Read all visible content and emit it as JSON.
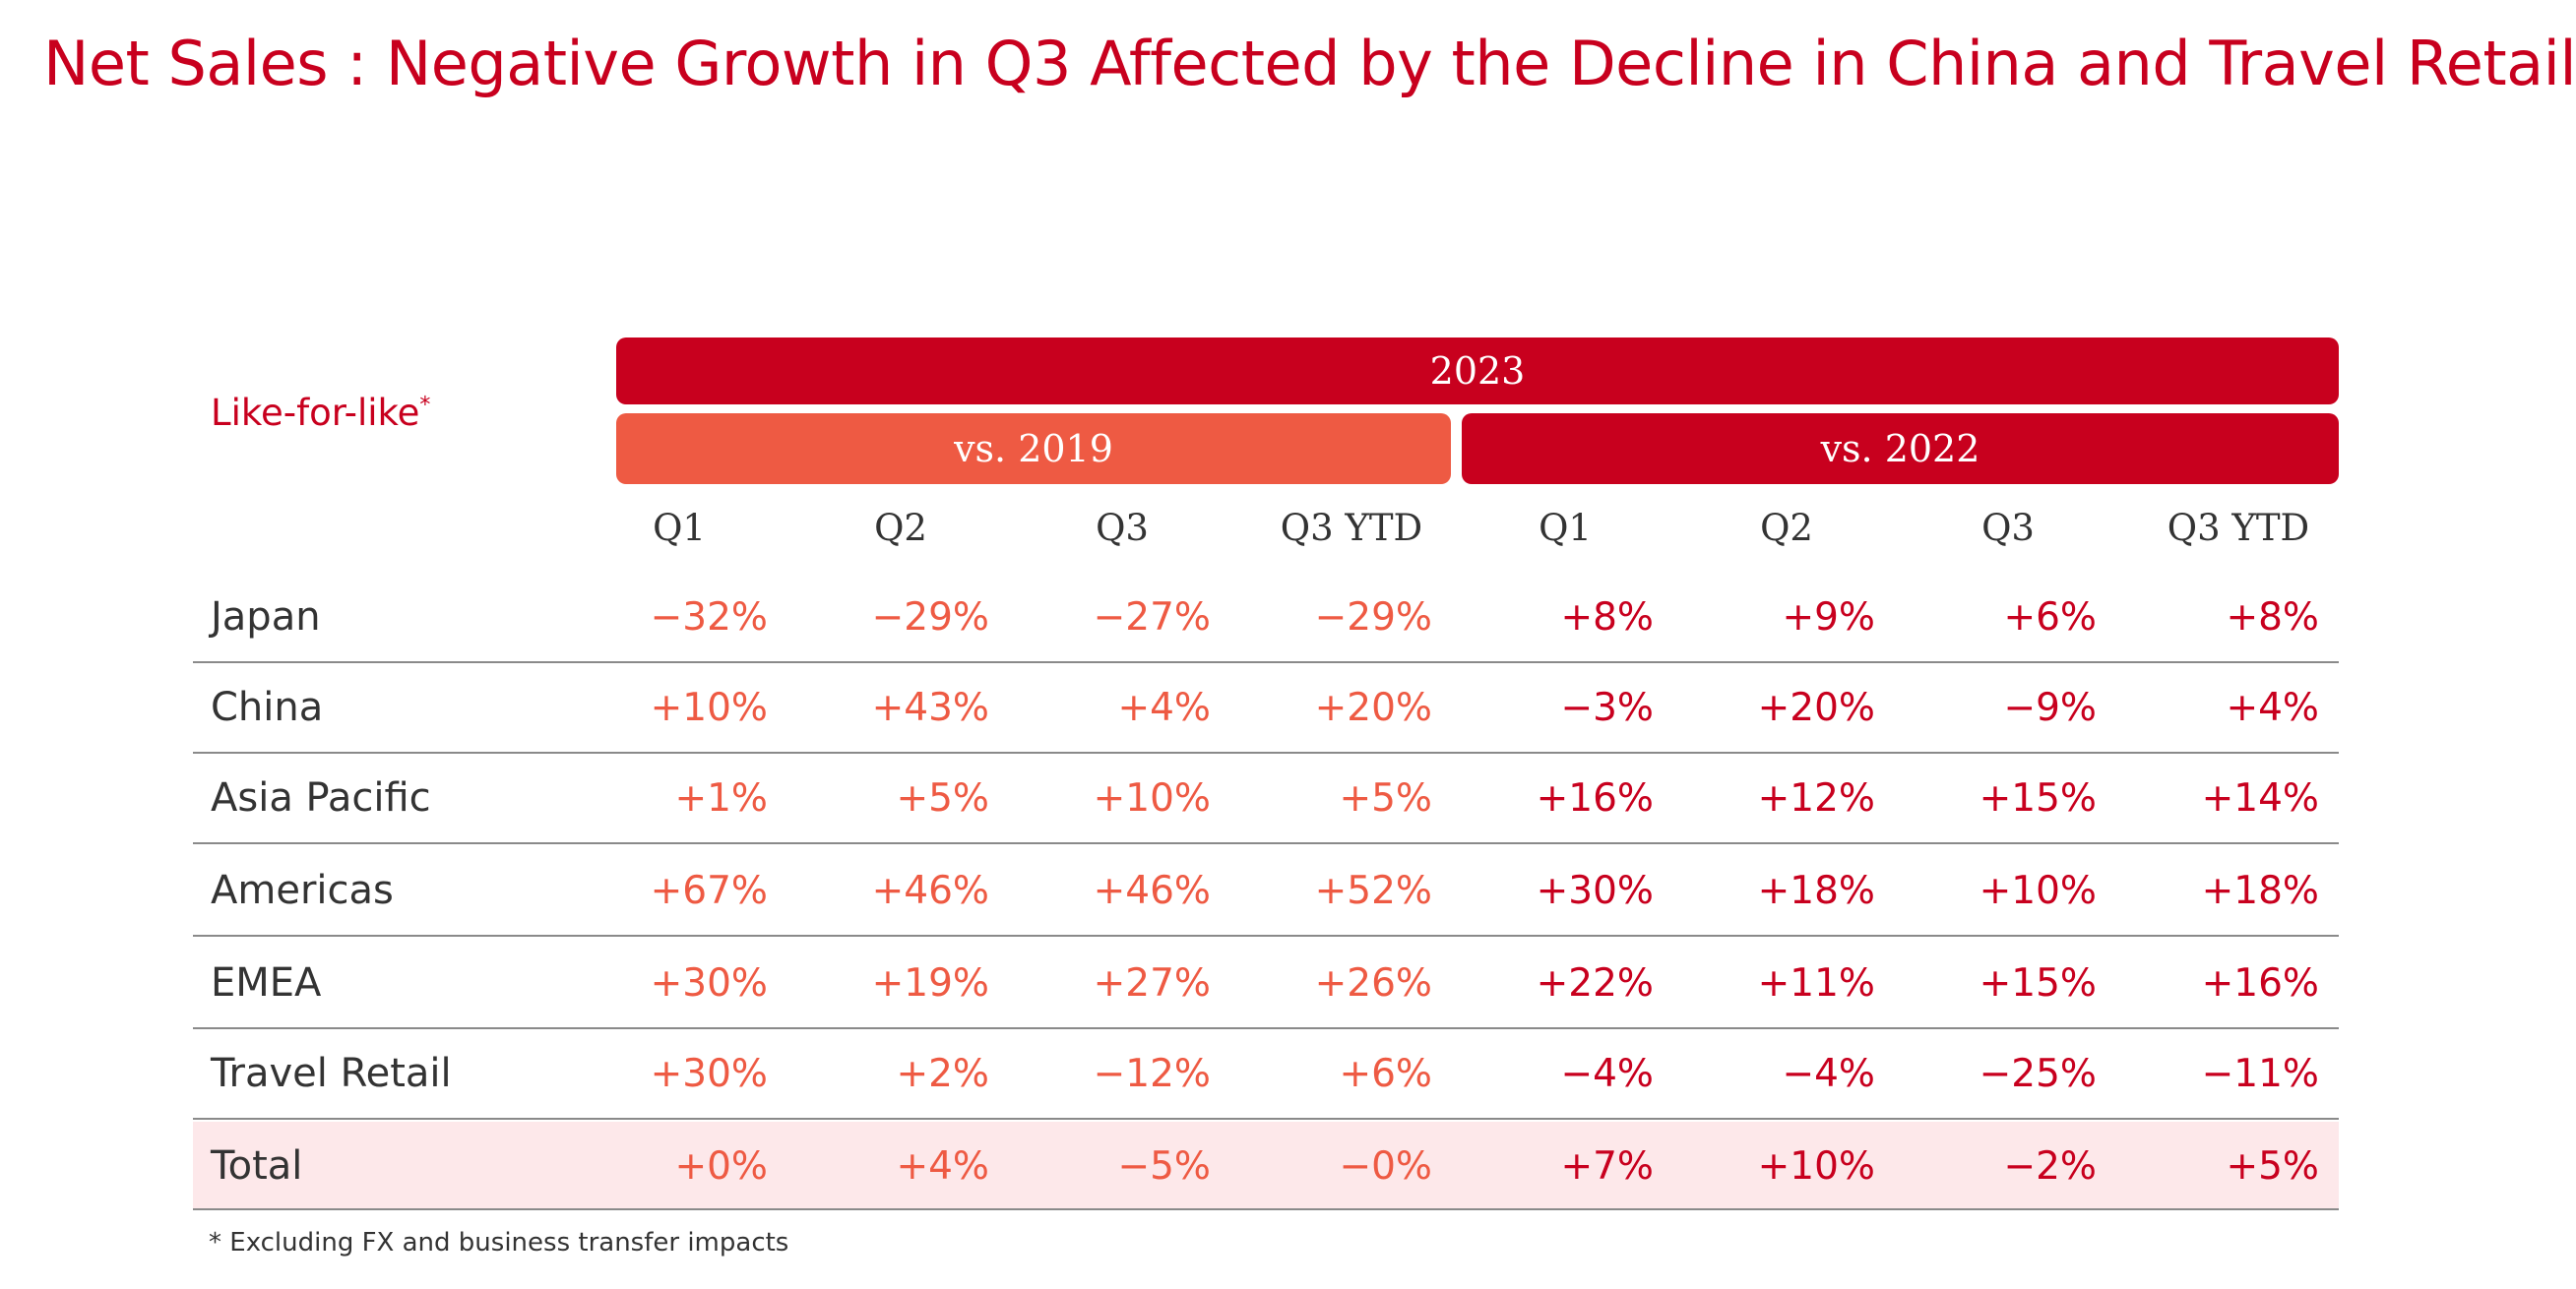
{
  "title": "Net Sales :  Negative Growth in Q3 Affected by the Decline in China and Travel Retail",
  "row_header": {
    "label": "Like-for-like",
    "mark": "*"
  },
  "year_band": "2023",
  "groups": [
    "vs. 2019",
    "vs. 2022"
  ],
  "columns": [
    "Q1",
    "Q2",
    "Q3",
    "Q3 YTD",
    "Q1",
    "Q2",
    "Q3",
    "Q3 YTD"
  ],
  "colors": {
    "brand_red": "#c8001e",
    "coral": "#ee5a43",
    "total_highlight": "#fde8ea"
  },
  "rows": [
    {
      "label": "Japan",
      "values": [
        "−32%",
        "−29%",
        "−27%",
        "−29%",
        "+8%",
        "+9%",
        "+6%",
        "+8%"
      ]
    },
    {
      "label": "China",
      "values": [
        "+10%",
        "+43%",
        "+4%",
        "+20%",
        "−3%",
        "+20%",
        "−9%",
        "+4%"
      ]
    },
    {
      "label": "Asia Pacific",
      "values": [
        "+1%",
        "+5%",
        "+10%",
        "+5%",
        "+16%",
        "+12%",
        "+15%",
        "+14%"
      ]
    },
    {
      "label": "Americas",
      "values": [
        "+67%",
        "+46%",
        "+46%",
        "+52%",
        "+30%",
        "+18%",
        "+10%",
        "+18%"
      ]
    },
    {
      "label": "EMEA",
      "values": [
        "+30%",
        "+19%",
        "+27%",
        "+26%",
        "+22%",
        "+11%",
        "+15%",
        "+16%"
      ]
    },
    {
      "label": "Travel Retail",
      "values": [
        "+30%",
        "+2%",
        "−12%",
        "+6%",
        "−4%",
        "−4%",
        "−25%",
        "−11%"
      ]
    },
    {
      "label": "Total",
      "values": [
        "+0%",
        "+4%",
        "−5%",
        "−0%",
        "+7%",
        "+10%",
        "−2%",
        "+5%"
      ]
    }
  ],
  "footnote": "* Excluding FX and business transfer impacts"
}
